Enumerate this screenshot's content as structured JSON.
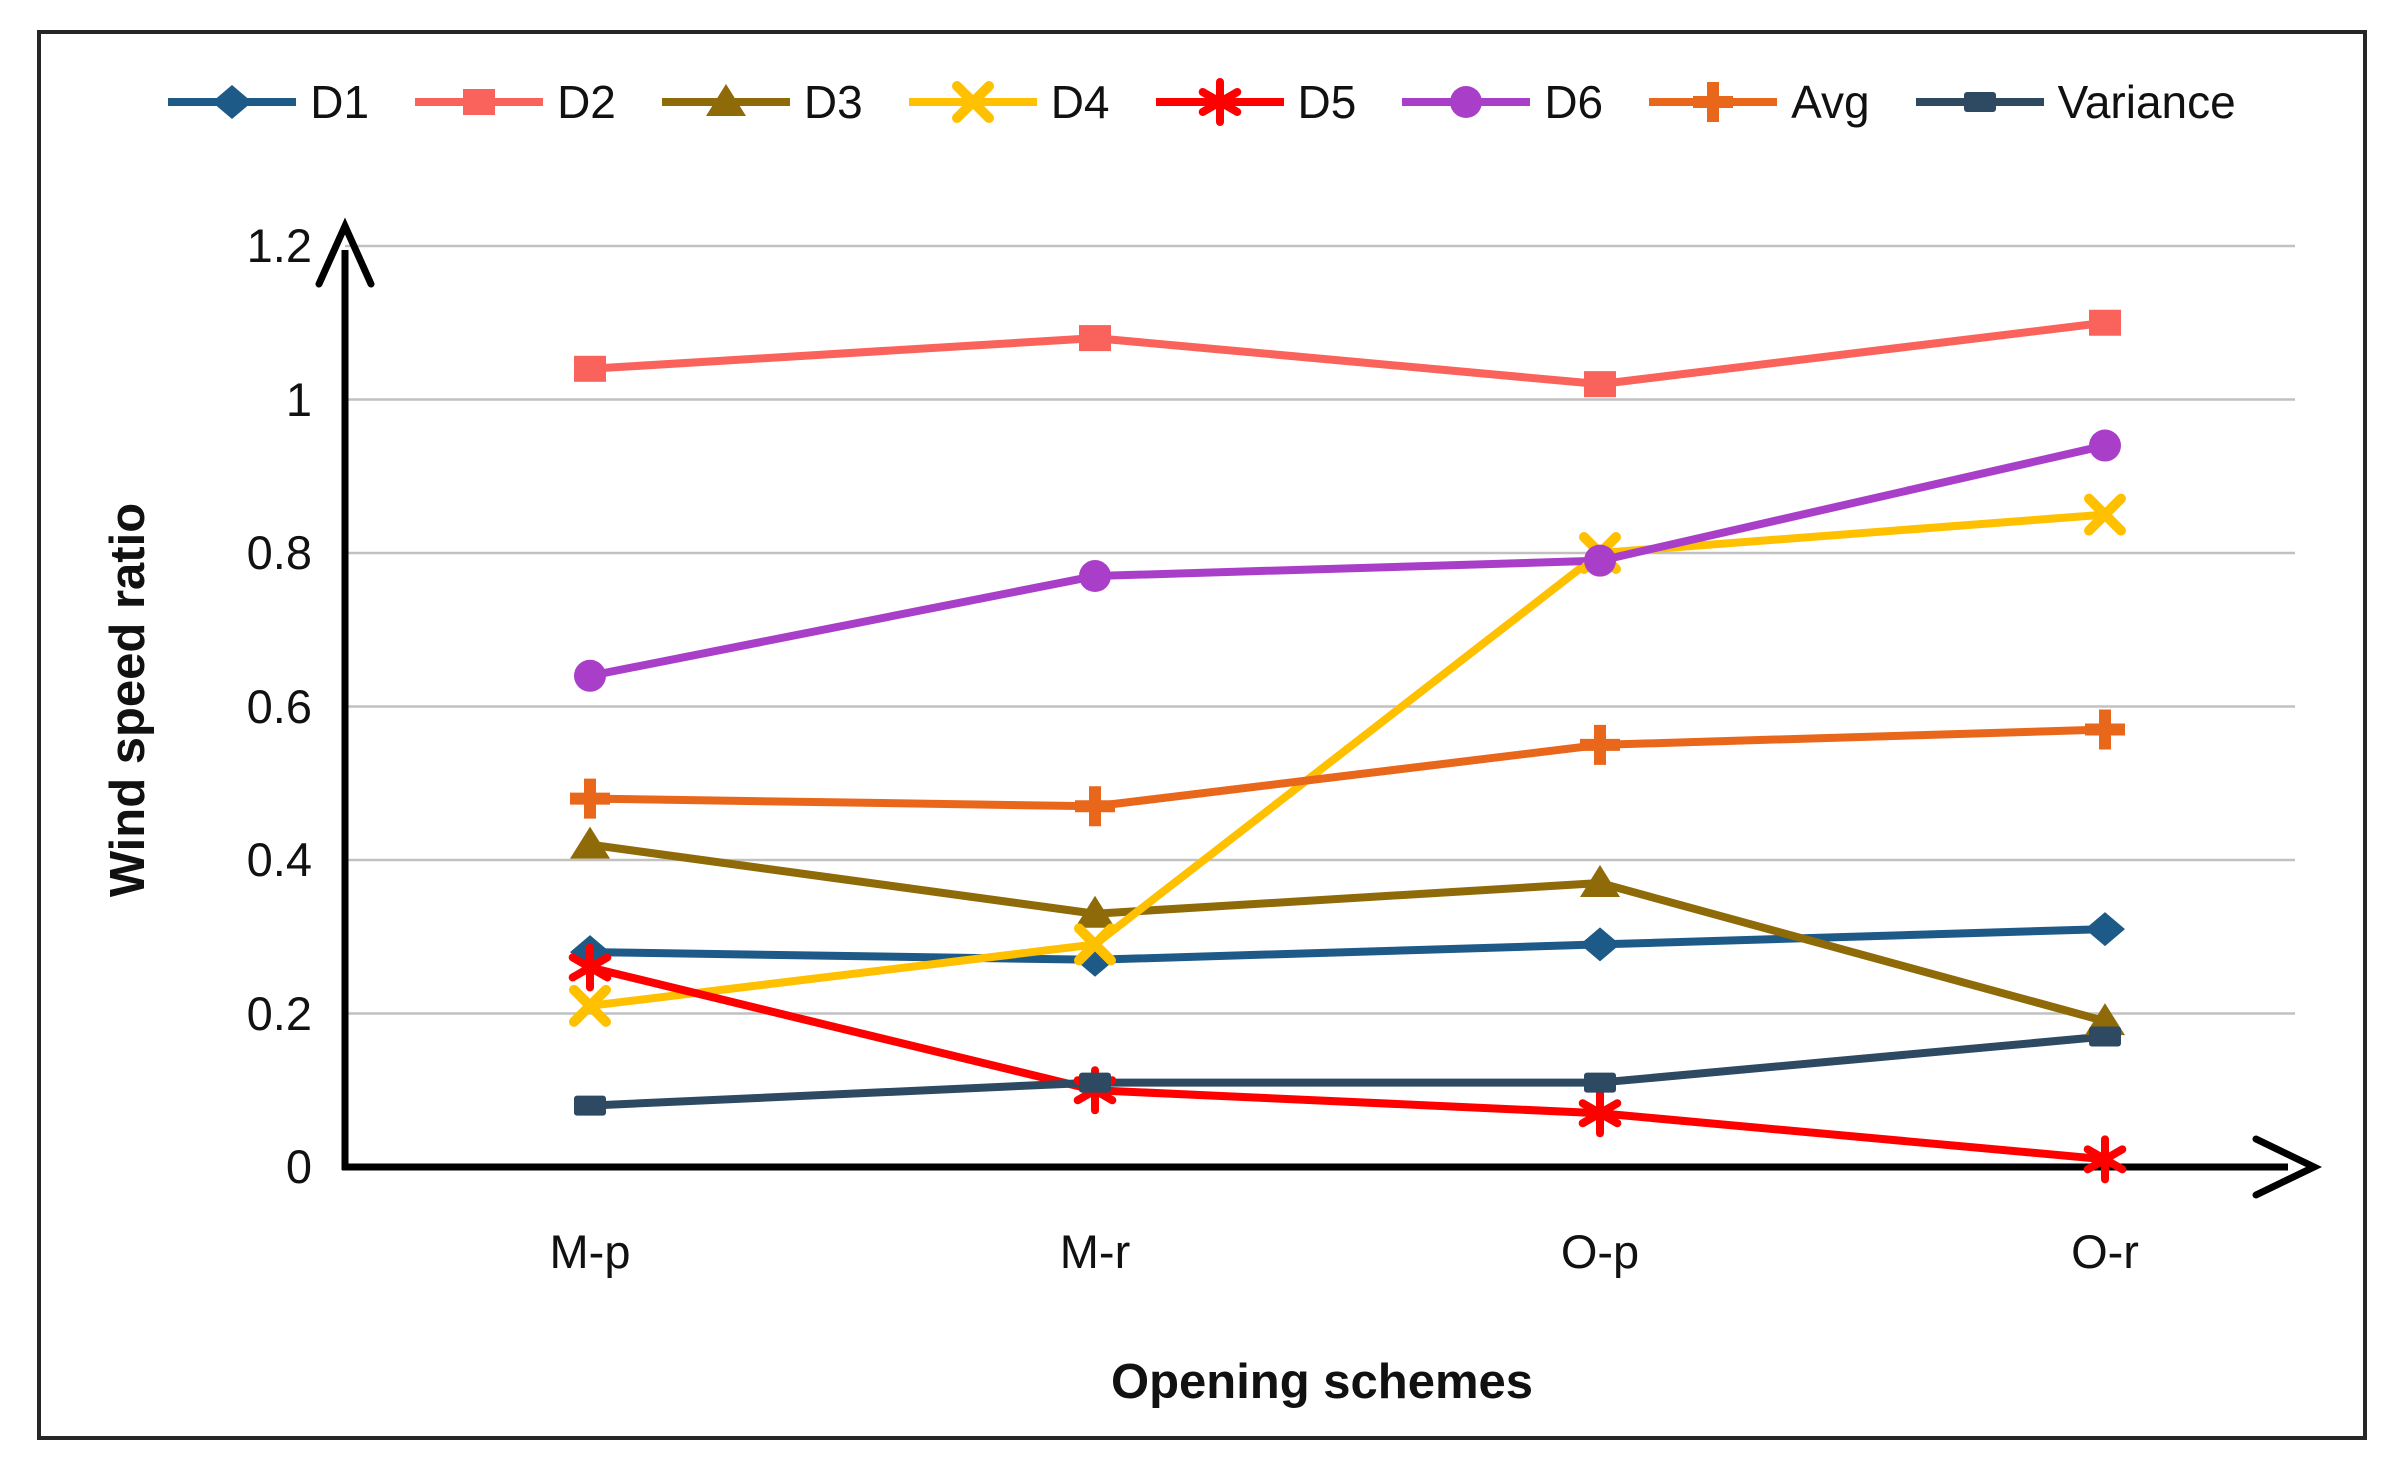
{
  "figure": {
    "background": "#ffffff",
    "border_color": "#262626",
    "axis_color": "#000000",
    "text_color": "#111111"
  },
  "chart_data": {
    "type": "line",
    "title": "",
    "xlabel": "Opening schemes",
    "ylabel": "Wind speed ratio",
    "categories": [
      "M-p",
      "M-r",
      "O-p",
      "O-r"
    ],
    "ylim": [
      0,
      1.2
    ],
    "ytick_interval": 0.2,
    "ytick_labels": [
      "0",
      "0.2",
      "0.4",
      "0.6",
      "0.8",
      "1",
      "1.2"
    ],
    "grid": "horizontal",
    "gridline_color": "#c1c1c1",
    "legend_position": "top",
    "series": [
      {
        "name": "D1",
        "marker": "diamond",
        "color": "#1E5A87",
        "values": [
          0.28,
          0.27,
          0.29,
          0.31
        ]
      },
      {
        "name": "D2",
        "marker": "square",
        "color": "#FA625C",
        "values": [
          1.04,
          1.08,
          1.02,
          1.1
        ]
      },
      {
        "name": "D3",
        "marker": "triangle",
        "color": "#8E6A08",
        "values": [
          0.42,
          0.33,
          0.37,
          0.19
        ]
      },
      {
        "name": "D4",
        "marker": "x",
        "color": "#FFC000",
        "values": [
          0.21,
          0.29,
          0.8,
          0.85
        ]
      },
      {
        "name": "D5",
        "marker": "asterisk",
        "color": "#FE0000",
        "values": [
          0.26,
          0.1,
          0.07,
          0.01
        ]
      },
      {
        "name": "D6",
        "marker": "circle",
        "color": "#A93FC9",
        "values": [
          0.64,
          0.77,
          0.79,
          0.94
        ]
      },
      {
        "name": "Avg",
        "marker": "plus",
        "color": "#E8671B",
        "values": [
          0.48,
          0.47,
          0.55,
          0.57
        ]
      },
      {
        "name": "Variance",
        "marker": "dash-square",
        "color": "#2E4A63",
        "values": [
          0.08,
          0.11,
          0.11,
          0.17
        ]
      }
    ]
  }
}
